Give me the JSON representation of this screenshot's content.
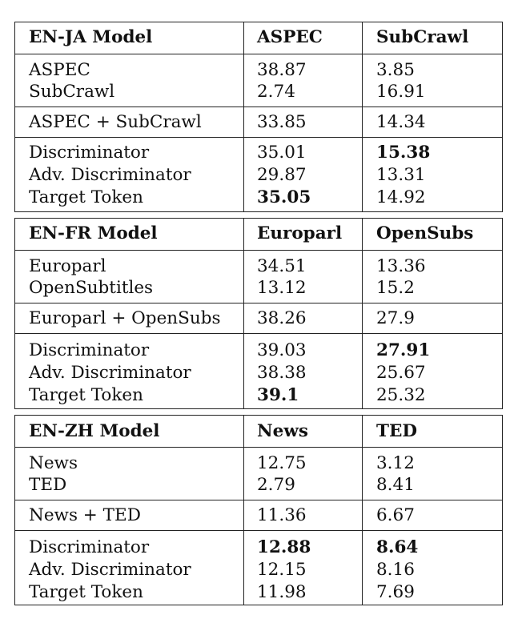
{
  "tables": [
    {
      "header": [
        "EN-JA Model",
        "ASPEC",
        "SubCrawl"
      ],
      "groups": [
        [
          [
            "ASPEC",
            "38.87",
            "3.85"
          ],
          [
            "SubCrawl",
            "2.74",
            "16.91"
          ]
        ],
        [
          [
            "ASPEC + SubCrawl",
            "33.85",
            "14.34"
          ]
        ],
        [
          [
            "Discriminator",
            "35.01",
            "15.38"
          ],
          [
            "Adv. Discriminator",
            "29.87",
            "13.31"
          ],
          [
            "Target Token",
            "35.05",
            "14.92"
          ]
        ]
      ]
    },
    {
      "header": [
        "EN-FR Model",
        "Europarl",
        "OpenSubs"
      ],
      "groups": [
        [
          [
            "Europarl",
            "34.51",
            "13.36"
          ],
          [
            "OpenSubtitles",
            "13.12",
            "15.2"
          ]
        ],
        [
          [
            "Europarl + OpenSubs",
            "38.26",
            "27.9"
          ]
        ],
        [
          [
            "Discriminator",
            "39.03",
            "27.91"
          ],
          [
            "Adv. Discriminator",
            "38.38",
            "25.67"
          ],
          [
            "Target Token",
            "39.1",
            "25.32"
          ]
        ]
      ]
    },
    {
      "header": [
        "EN-ZH Model",
        "News",
        "TED"
      ],
      "groups": [
        [
          [
            "News",
            "12.75",
            "3.12"
          ],
          [
            "TED",
            "2.79",
            "8.41"
          ]
        ],
        [
          [
            "News + TED",
            "11.36",
            "6.67"
          ]
        ],
        [
          [
            "Discriminator",
            "12.88",
            "8.64"
          ],
          [
            "Adv. Discriminator",
            "12.15",
            "8.16"
          ],
          [
            "Target Token",
            "11.98",
            "7.69"
          ]
        ]
      ]
    }
  ]
}
